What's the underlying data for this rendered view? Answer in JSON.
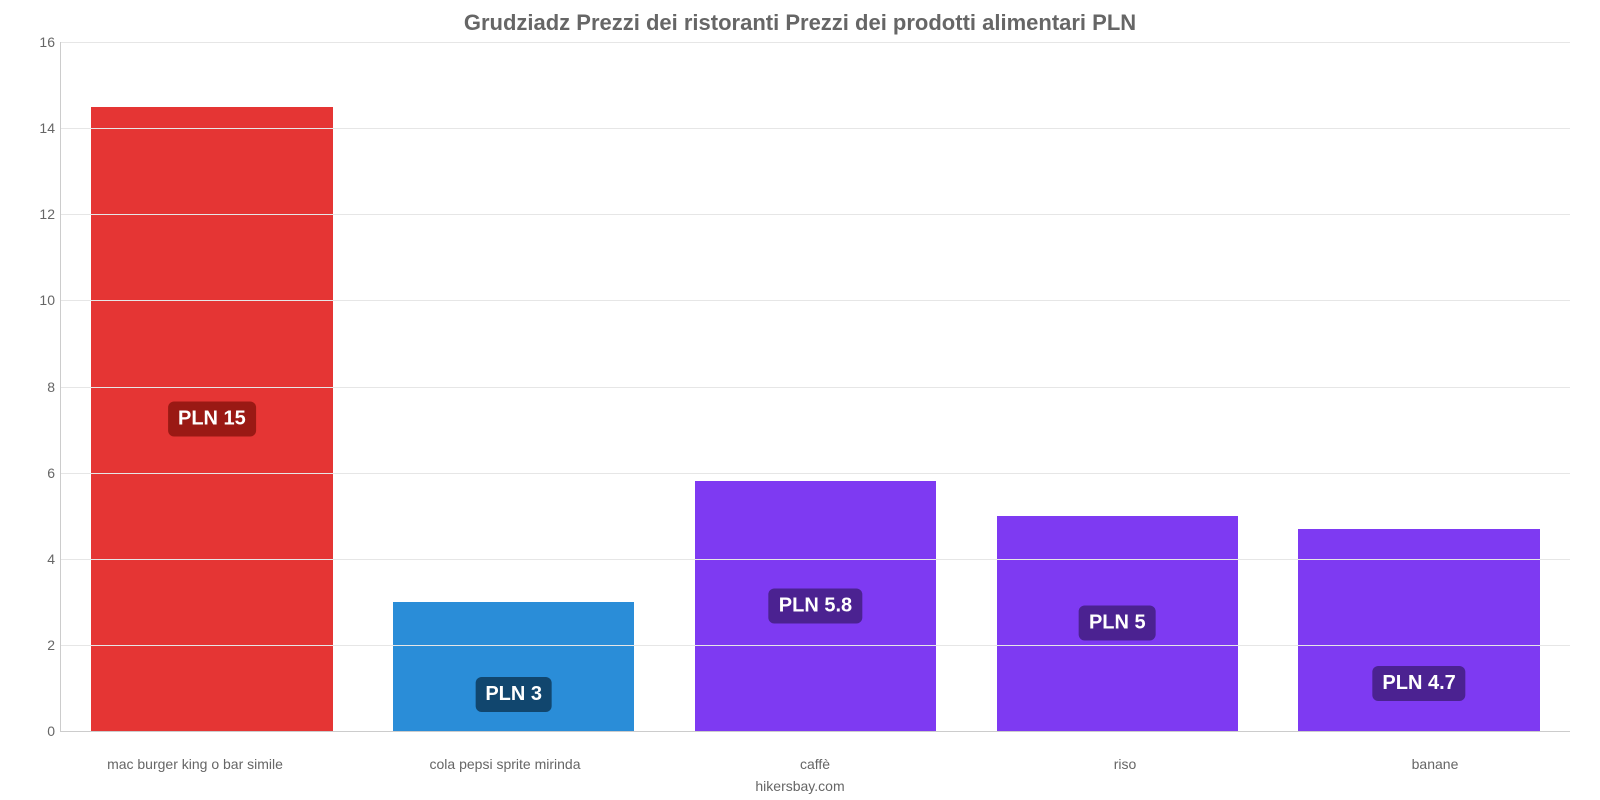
{
  "chart": {
    "type": "bar",
    "title": "Grudziadz Prezzi dei ristoranti Prezzi dei prodotti alimentari PLN",
    "title_fontsize": 22,
    "title_color": "#666666",
    "footer": "hikersbay.com",
    "footer_color": "#666666",
    "background_color": "#ffffff",
    "grid_color": "#e6e6e6",
    "axis_color": "#cccccc",
    "tick_color": "#666666",
    "ylim_min": 0,
    "ylim_max": 16,
    "ytick_step": 2,
    "bar_width_pct": 80,
    "label_fontsize": 20,
    "categories": [
      "mac burger king o bar simile",
      "cola pepsi sprite mirinda",
      "caffè",
      "riso",
      "banane"
    ],
    "values": [
      14.5,
      3.0,
      5.8,
      5.0,
      4.7
    ],
    "value_labels": [
      "PLN 15",
      "PLN 3",
      "PLN 5.8",
      "PLN 5",
      "PLN 4.7"
    ],
    "bar_colors": [
      "#e53534",
      "#2a8dd8",
      "#7e3af2",
      "#7e3af2",
      "#7e3af2"
    ],
    "label_bg_colors": [
      "#9a1914",
      "#11466e",
      "#4b2291",
      "#4b2291",
      "#4b2291"
    ]
  }
}
